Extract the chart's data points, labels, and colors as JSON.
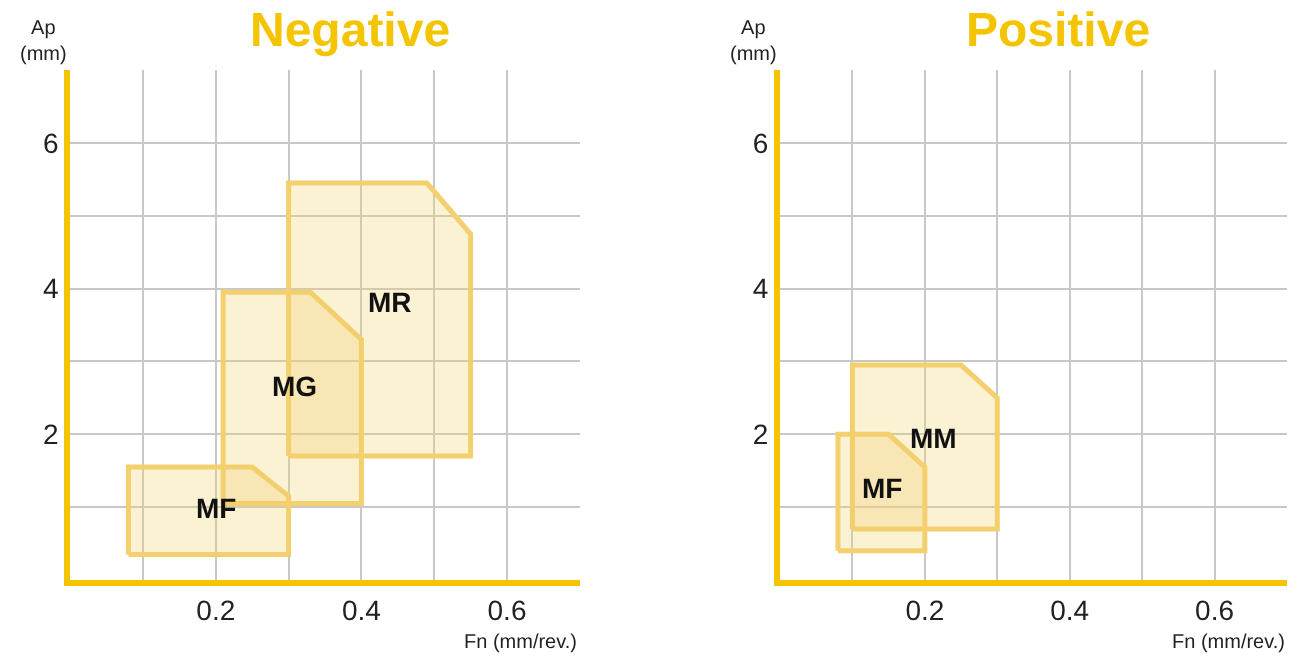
{
  "chart_data": [
    {
      "type": "area",
      "title": "Negative",
      "xlabel": "Fn (mm/rev.)",
      "ylabel": "Ap\n(mm)",
      "xlim": [
        0,
        0.7
      ],
      "ylim": [
        0,
        7
      ],
      "xticks": [
        {
          "value": 0.1,
          "label": null
        },
        0.2,
        {
          "value": 0.3,
          "label": null
        },
        0.4,
        {
          "value": 0.5,
          "label": null
        },
        0.6
      ],
      "yticks": [
        {
          "value": 1,
          "label": null
        },
        2,
        {
          "value": 3,
          "label": null
        },
        4,
        {
          "value": 5,
          "label": null
        },
        6
      ],
      "grid": true,
      "series": [
        {
          "name": "MF",
          "color": "#f3cf6e",
          "x": [
            0.08,
            0.3,
            0.3,
            0.25,
            0.08
          ],
          "values": [
            0.35,
            0.35,
            1.15,
            1.55,
            1.55
          ]
        },
        {
          "name": "MG",
          "color": "#f3cf6e",
          "x": [
            0.21,
            0.4,
            0.4,
            0.33,
            0.21
          ],
          "values": [
            1.05,
            1.05,
            3.3,
            3.95,
            3.95
          ]
        },
        {
          "name": "MR",
          "color": "#f3cf6e",
          "x": [
            0.3,
            0.55,
            0.55,
            0.49,
            0.3
          ],
          "values": [
            1.7,
            1.7,
            4.75,
            5.45,
            5.45
          ]
        }
      ]
    },
    {
      "type": "area",
      "title": "Positive",
      "xlabel": "Fn (mm/rev.)",
      "ylabel": "Ap\n(mm)",
      "xlim": [
        0,
        0.7
      ],
      "ylim": [
        0,
        7
      ],
      "xticks": [
        {
          "value": 0.1,
          "label": null
        },
        0.2,
        {
          "value": 0.3,
          "label": null
        },
        0.4,
        {
          "value": 0.5,
          "label": null
        },
        0.6
      ],
      "yticks": [
        {
          "value": 1,
          "label": null
        },
        2,
        {
          "value": 3,
          "label": null
        },
        4,
        {
          "value": 5,
          "label": null
        },
        6
      ],
      "grid": true,
      "series": [
        {
          "name": "MM",
          "color": "#f3cf6e",
          "x": [
            0.1,
            0.3,
            0.3,
            0.25,
            0.1
          ],
          "values": [
            0.7,
            0.7,
            2.5,
            2.95,
            2.95
          ]
        },
        {
          "name": "MF",
          "color": "#f3cf6e",
          "x": [
            0.08,
            0.2,
            0.2,
            0.15,
            0.08
          ],
          "values": [
            0.4,
            0.4,
            1.55,
            2.0,
            2.0
          ]
        }
      ]
    }
  ]
}
